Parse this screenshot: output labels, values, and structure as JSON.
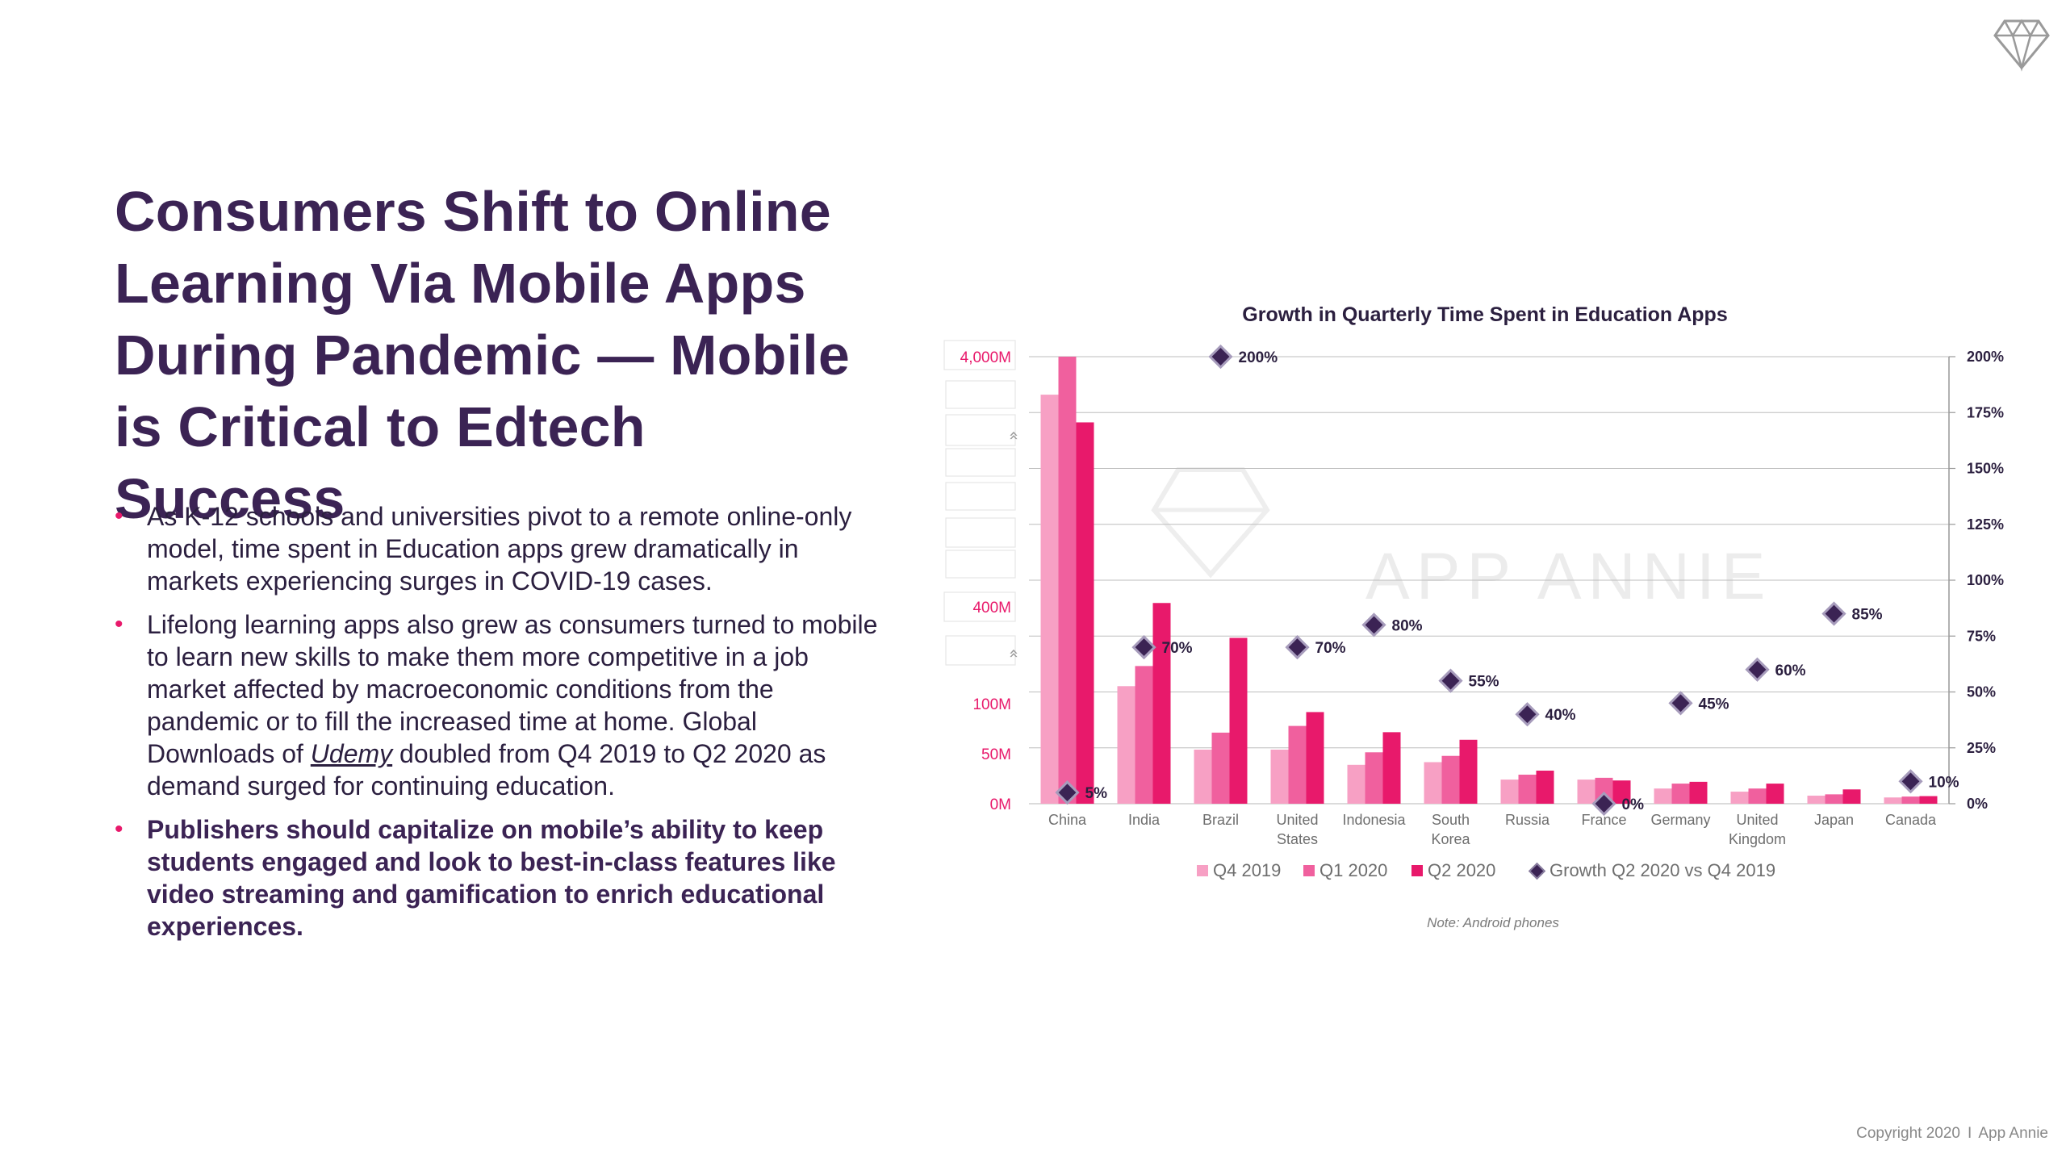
{
  "page": {
    "title": "Consumers Shift to Online Learning Via Mobile Apps During Pandemic — Mobile is Critical to Edtech Success",
    "bullets": [
      {
        "text": "As K-12 schools and universities pivot to a remote online-only model, time spent in Education apps grew dramatically in markets experiencing surges in COVID-19 cases."
      },
      {
        "text_before": "Lifelong learning apps also grew as consumers turned to mobile to learn new skills to make them more competitive in a job market affected by macroeconomic conditions from the pandemic or to fill the increased time at home. Global Downloads of ",
        "link": "Udemy",
        "text_after": " doubled from Q4 2019 to Q2 2020 as demand surged for continuing education."
      },
      {
        "text": "Publishers should capitalize on mobile’s ability to keep students engaged and look to best-in-class features like video streaming and gamification to enrich educational experiences."
      }
    ],
    "note": "Note: Android phones",
    "copyright": "Copyright 2020  I  App Annie",
    "watermark": "APP ANNIE",
    "bullet_glyph": "•",
    "axis_break_glyph": "»"
  },
  "colors": {
    "title": "#3b2354",
    "accent": "#e8196b",
    "q4_2019": "#f7a0c4",
    "q1_2020": "#f0609e",
    "q2_2020": "#e8196b",
    "growth_marker": "#3b2354"
  },
  "chart_data": {
    "type": "bar",
    "title": "Growth in Quarterly Time Spent in Education Apps",
    "categories": [
      "China",
      "India",
      "Brazil",
      "United States",
      "Indonesia",
      "South Korea",
      "Russia",
      "France",
      "Germany",
      "United Kingdom",
      "Japan",
      "Canada"
    ],
    "series": [
      {
        "name": "Q4 2019",
        "relative_heights": [
          0.915,
          0.263,
          0.121,
          0.121,
          0.087,
          0.093,
          0.054,
          0.054,
          0.034,
          0.027,
          0.018,
          0.014
        ]
      },
      {
        "name": "Q1 2020",
        "relative_heights": [
          1.0,
          0.308,
          0.159,
          0.174,
          0.115,
          0.107,
          0.065,
          0.058,
          0.045,
          0.034,
          0.021,
          0.016
        ]
      },
      {
        "name": "Q2 2020",
        "relative_heights": [
          0.853,
          0.449,
          0.371,
          0.205,
          0.16,
          0.143,
          0.074,
          0.052,
          0.049,
          0.045,
          0.032,
          0.017
        ]
      }
    ],
    "growth_series": {
      "name": "Growth Q2 2020 vs Q4 2019",
      "values": [
        5,
        70,
        200,
        70,
        80,
        55,
        40,
        0,
        45,
        60,
        85,
        10
      ],
      "labels": [
        "5%",
        "70%",
        "200%",
        "70%",
        "80%",
        "55%",
        "40%",
        "0%",
        "45%",
        "60%",
        "85%",
        "10%"
      ]
    },
    "category_labels": [
      [
        "China"
      ],
      [
        "India"
      ],
      [
        "Brazil"
      ],
      [
        "United",
        "States"
      ],
      [
        "Indonesia"
      ],
      [
        "South",
        "Korea"
      ],
      [
        "Russia"
      ],
      [
        "France"
      ],
      [
        "Germany"
      ],
      [
        "United",
        "Kingdom"
      ],
      [
        "Japan"
      ],
      [
        "Canada"
      ]
    ],
    "left_axis_labels": [
      "4,000M",
      "400M",
      "100M",
      "50M",
      "0M"
    ],
    "left_axis_note": "broken axis (non-linear)",
    "right_axis": {
      "ylim": [
        0,
        200
      ],
      "ticks": [
        0,
        25,
        50,
        75,
        100,
        125,
        150,
        175,
        200
      ],
      "tick_labels": [
        "0%",
        "25%",
        "50%",
        "75%",
        "100%",
        "125%",
        "150%",
        "175%",
        "200%"
      ]
    },
    "legend": [
      "Q4 2019",
      "Q1 2020",
      "Q2 2020",
      "Growth Q2 2020 vs Q4 2019"
    ],
    "legend_position": "bottom"
  }
}
